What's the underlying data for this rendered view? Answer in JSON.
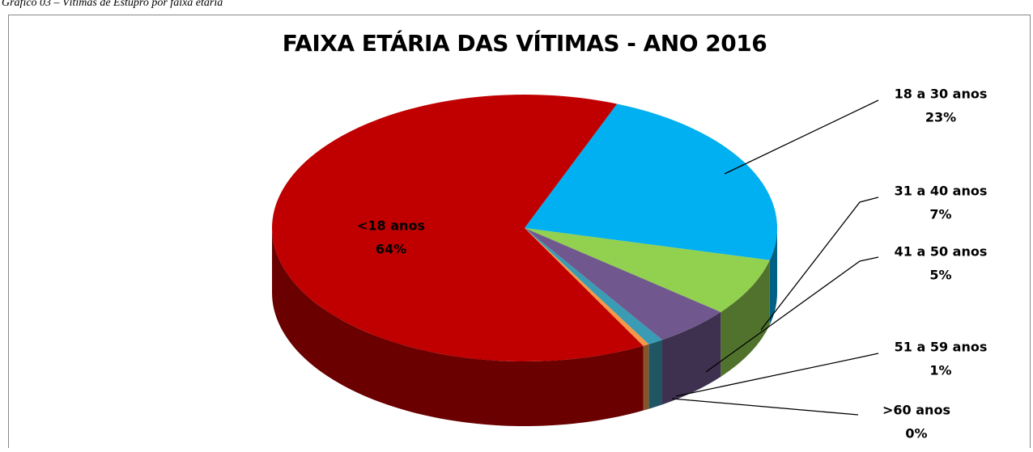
{
  "caption": "Gráfico 03 – Vítimas de Estupro por faixa etária",
  "chart_data": {
    "type": "pie3d",
    "title": "FAIXA ETÁRIA DAS VÍTIMAS - ANO 2016",
    "categories": [
      "<18 anos",
      "18 a 30 anos",
      "31 a 40 anos",
      "41 a 50 anos",
      "51 a 59 anos",
      ">60 anos"
    ],
    "values": [
      64,
      23,
      7,
      5,
      1,
      0.4
    ],
    "value_labels": [
      "64%",
      "23%",
      "7%",
      "5%",
      "1%",
      "0%"
    ],
    "colors": [
      "#c00000",
      "#00b0f0",
      "#92d050",
      "#70588f",
      "#3a9bb4",
      "#f79646"
    ]
  }
}
